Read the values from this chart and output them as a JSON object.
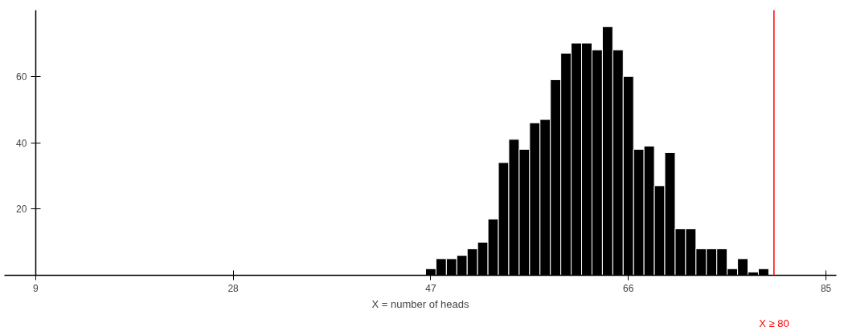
{
  "chart_data": {
    "type": "histogram",
    "xlabel": "X = number of heads",
    "bins": [
      46.5,
      47.5,
      48.5,
      49.5,
      50.5,
      51.5,
      52.5,
      53.5,
      54.5,
      55.5,
      56.5,
      57.5,
      58.5,
      59.5,
      60.5,
      61.5,
      62.5,
      63.5,
      64.5,
      65.5,
      66.5,
      67.5,
      68.5,
      69.5,
      70.5,
      71.5,
      72.5,
      73.5,
      74.5,
      75.5,
      76.5,
      77.5,
      78.5,
      79.5
    ],
    "values": [
      2,
      5,
      5,
      6,
      8,
      10,
      17,
      34,
      41,
      38,
      46,
      47,
      59,
      67,
      70,
      70,
      68,
      75,
      68,
      60,
      38,
      39,
      27,
      37,
      14,
      14,
      8,
      8,
      8,
      2,
      5,
      1,
      2
    ],
    "color": "#000000",
    "xlim": [
      6,
      86
    ],
    "xticks": [
      9,
      28,
      47,
      66,
      85
    ],
    "ylim": [
      0,
      80
    ],
    "yticks": [
      20,
      40,
      60
    ],
    "grid": false,
    "ref_lines": [
      {
        "axis": "x",
        "value": 80,
        "label": "X ≥ 80",
        "color": "#ff0000"
      }
    ]
  }
}
